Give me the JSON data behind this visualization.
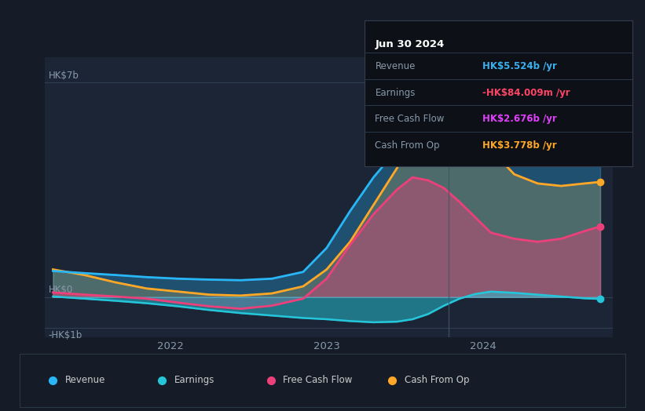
{
  "bg_color": "#151c28",
  "plot_bg_color": "#1b2535",
  "title_box_date": "Jun 30 2024",
  "info_box_bg": "#0d1117",
  "info_box_rows": [
    {
      "label": "Revenue",
      "value": "HK$5.524b /yr",
      "color": "#3ab0f0"
    },
    {
      "label": "Earnings",
      "value": "-HK$84.009m /yr",
      "color": "#ff4466"
    },
    {
      "label": "Free Cash Flow",
      "value": "HK$2.676b /yr",
      "color": "#e040fb"
    },
    {
      "label": "Cash From Op",
      "value": "HK$3.778b /yr",
      "color": "#ffa726"
    }
  ],
  "ylim": [
    -1.3,
    7.8
  ],
  "xtick_vals": [
    2022,
    2023,
    2024
  ],
  "past_line_x": 2023.78,
  "colors": {
    "Revenue": "#29b6f6",
    "Earnings": "#26c6da",
    "Free_Cash_Flow": "#ec407a",
    "Cash_From_Op": "#ffa726"
  },
  "x_data": [
    2021.25,
    2021.45,
    2021.65,
    2021.85,
    2022.05,
    2022.25,
    2022.45,
    2022.65,
    2022.85,
    2023.0,
    2023.15,
    2023.3,
    2023.45,
    2023.55,
    2023.65,
    2023.75,
    2023.85,
    2023.95,
    2024.05,
    2024.2,
    2024.35,
    2024.5,
    2024.65,
    2024.75
  ],
  "Revenue": [
    0.85,
    0.78,
    0.72,
    0.65,
    0.6,
    0.57,
    0.55,
    0.6,
    0.82,
    1.6,
    2.8,
    3.9,
    4.8,
    5.3,
    5.65,
    5.85,
    5.8,
    5.7,
    5.6,
    5.55,
    5.52,
    5.5,
    5.5,
    5.48
  ],
  "Earnings": [
    0.02,
    -0.05,
    -0.12,
    -0.2,
    -0.3,
    -0.42,
    -0.52,
    -0.6,
    -0.68,
    -0.72,
    -0.78,
    -0.82,
    -0.8,
    -0.72,
    -0.55,
    -0.28,
    -0.05,
    0.1,
    0.18,
    0.14,
    0.08,
    0.02,
    -0.04,
    -0.06
  ],
  "Free_Cash_Flow": [
    0.15,
    0.08,
    0.02,
    -0.05,
    -0.18,
    -0.3,
    -0.38,
    -0.28,
    -0.05,
    0.6,
    1.7,
    2.7,
    3.5,
    3.9,
    3.8,
    3.55,
    3.1,
    2.6,
    2.1,
    1.9,
    1.8,
    1.9,
    2.15,
    2.3
  ],
  "Cash_From_Op": [
    0.9,
    0.72,
    0.48,
    0.28,
    0.18,
    0.08,
    0.05,
    0.12,
    0.35,
    0.9,
    1.8,
    3.0,
    4.2,
    5.2,
    6.0,
    6.4,
    6.2,
    5.6,
    4.8,
    4.0,
    3.7,
    3.62,
    3.7,
    3.75
  ],
  "legend_items": [
    {
      "label": "Revenue",
      "color": "#29b6f6"
    },
    {
      "label": "Earnings",
      "color": "#26c6da"
    },
    {
      "label": "Free Cash Flow",
      "color": "#ec407a"
    },
    {
      "label": "Cash From Op",
      "color": "#ffa726"
    }
  ]
}
